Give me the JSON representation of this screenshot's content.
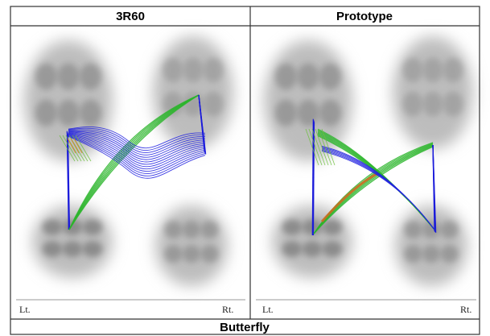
{
  "panels": [
    {
      "title": "3R60",
      "left_label": "Lt.",
      "right_label": "Rt."
    },
    {
      "title": "Prototype",
      "left_label": "Lt.",
      "right_label": "Rt."
    }
  ],
  "caption": "Butterfly"
}
